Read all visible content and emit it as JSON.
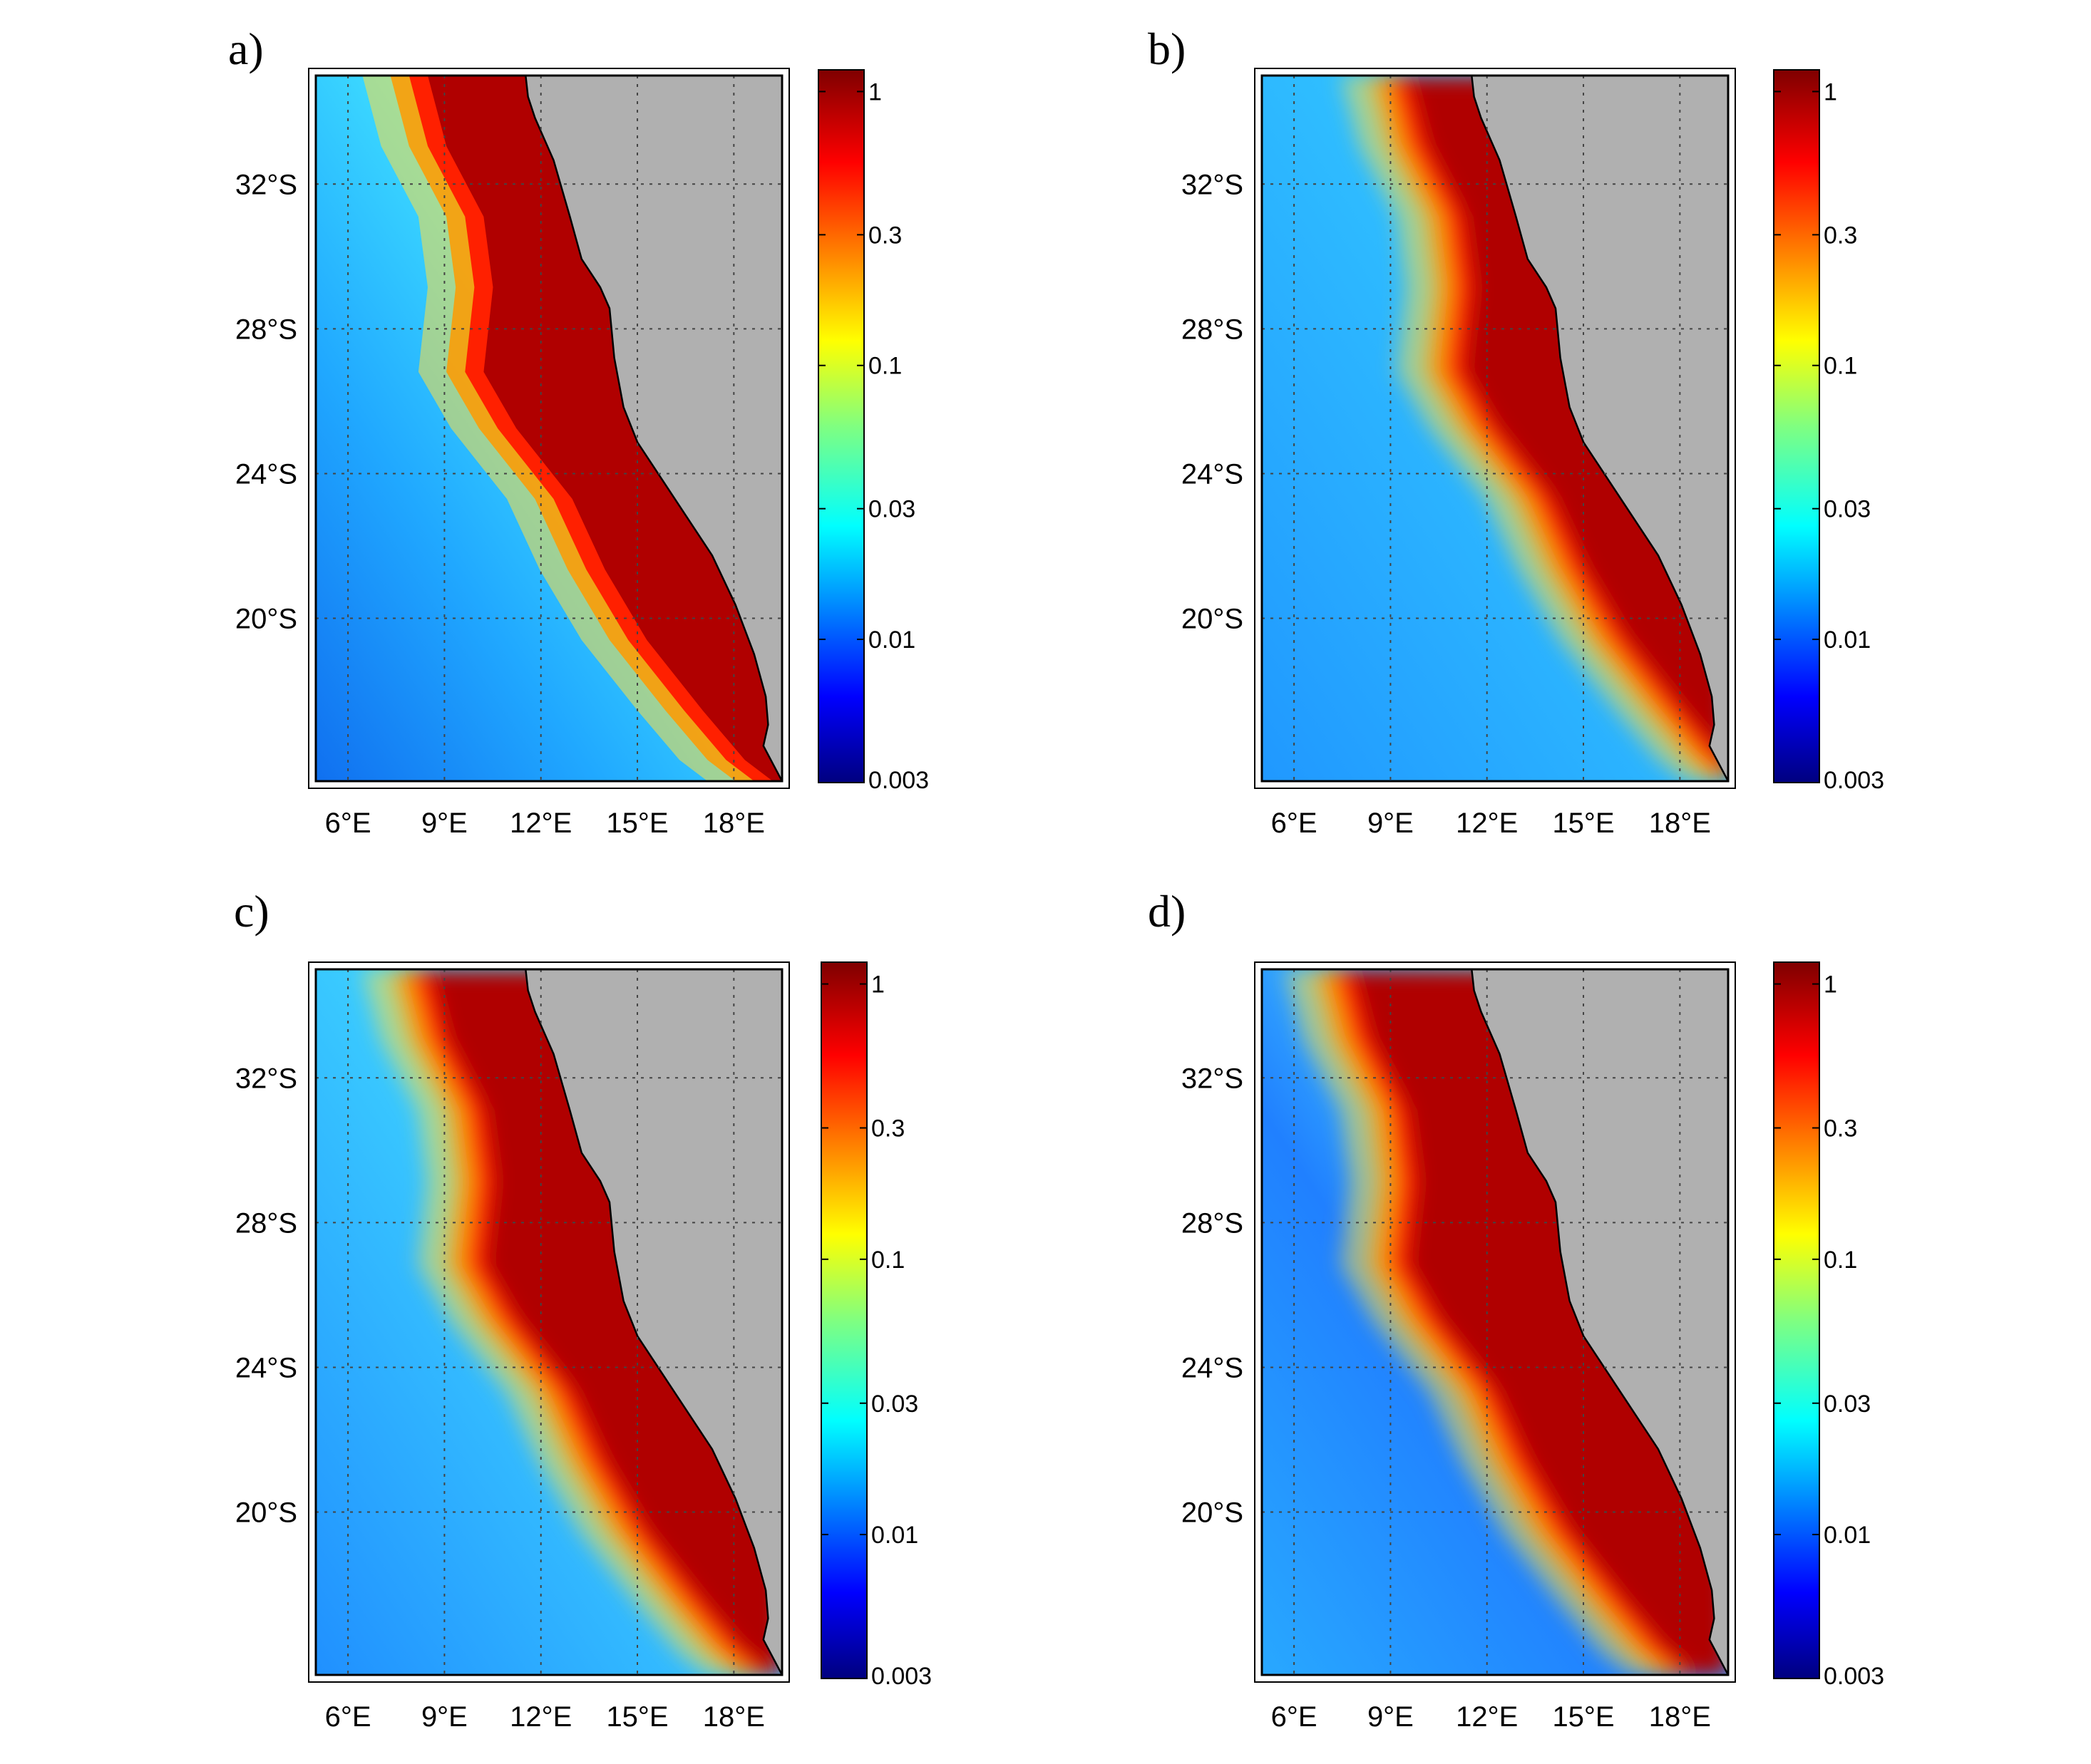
{
  "panels": [
    {
      "label": "a)"
    },
    {
      "label": "b)"
    },
    {
      "label": "c)"
    },
    {
      "label": "d)"
    }
  ],
  "axes": {
    "x_ticks": [
      "6°E",
      "9°E",
      "12°E",
      "15°E",
      "18°E"
    ],
    "x_tick_values": [
      6,
      9,
      12,
      15,
      18
    ],
    "y_ticks": [
      "20°S",
      "24°S",
      "28°S",
      "32°S"
    ],
    "y_tick_values": [
      -20,
      -24,
      -28,
      -32
    ],
    "lon_range": [
      5,
      19.5
    ],
    "lat_range": [
      -15.5,
      -35
    ]
  },
  "colorbar": {
    "ticks": [
      "1",
      "0.3",
      "0.1",
      "0.03",
      "0.01",
      "0.003"
    ],
    "tick_values": [
      1,
      0.3,
      0.1,
      0.03,
      0.01,
      0.003
    ],
    "range": [
      0.003,
      1.2
    ],
    "scale": "log",
    "colormap": "jet"
  },
  "colors": {
    "land": "#b0b0b0",
    "ocean_low": "#1e90ff",
    "ocean_high": "#8b0000"
  }
}
